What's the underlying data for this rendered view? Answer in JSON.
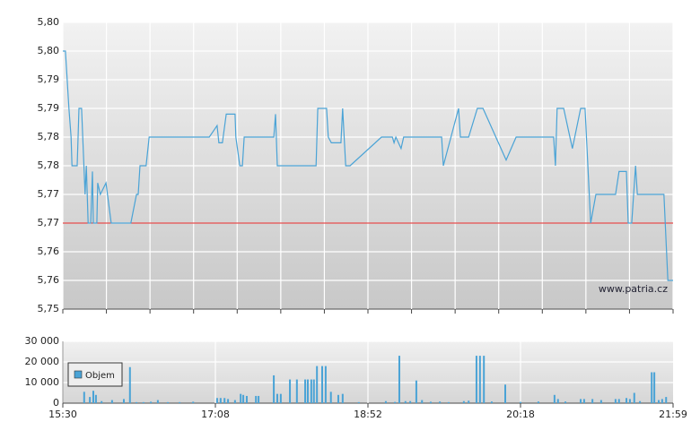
{
  "chart_data": [
    {
      "type": "line",
      "color": "#4aa3d6",
      "reference_line": 5.765,
      "reference_color": "#e02020",
      "annotation": "www.patria.cz",
      "xlim": [
        0,
        14
      ],
      "xgrid": [
        0,
        1,
        2,
        3,
        4,
        5,
        6,
        7,
        8,
        9,
        10,
        11,
        12,
        13,
        14
      ],
      "ylim": [
        5.75,
        5.8
      ],
      "yticks": [
        {
          "value": 5.75,
          "label": "5,75"
        },
        {
          "value": 5.755,
          "label": "5,76"
        },
        {
          "value": 5.76,
          "label": "5,76"
        },
        {
          "value": 5.765,
          "label": "5,77"
        },
        {
          "value": 5.77,
          "label": "5,77"
        },
        {
          "value": 5.775,
          "label": "5,78"
        },
        {
          "value": 5.78,
          "label": "5,78"
        },
        {
          "value": 5.785,
          "label": "5,79"
        },
        {
          "value": 5.79,
          "label": "5,79"
        },
        {
          "value": 5.795,
          "label": "5,80"
        },
        {
          "value": 5.8,
          "label": "5,80"
        }
      ],
      "grid": true,
      "x": [
        0,
        0.06,
        0.14,
        0.19,
        0.21,
        0.33,
        0.37,
        0.43,
        0.51,
        0.54,
        0.58,
        0.64,
        0.68,
        0.7,
        0.78,
        0.8,
        0.86,
        0.99,
        1.11,
        1.56,
        1.69,
        1.73,
        1.77,
        1.91,
        1.98,
        3.36,
        3.54,
        3.58,
        3.66,
        3.75,
        3.95,
        3.97,
        4.06,
        4.12,
        4.16,
        4.84,
        4.88,
        4.92,
        5.81,
        5.85,
        6.05,
        6.09,
        6.16,
        6.38,
        6.42,
        6.49,
        6.59,
        7.31,
        7.56,
        7.6,
        7.64,
        7.76,
        7.82,
        8.17,
        8.21,
        8.3,
        8.69,
        8.73,
        9.08,
        9.12,
        9.31,
        9.51,
        9.64,
        10.17,
        10.4,
        11.26,
        11.3,
        11.34,
        11.49,
        11.69,
        11.88,
        11.98,
        12.11,
        12.23,
        12.68,
        12.76,
        12.93,
        12.97,
        13.05,
        13.14,
        13.18,
        13.79,
        13.88,
        14
      ],
      "values": [
        5.795,
        5.795,
        5.785,
        5.78,
        5.775,
        5.775,
        5.785,
        5.785,
        5.77,
        5.775,
        5.765,
        5.765,
        5.774,
        5.765,
        5.765,
        5.772,
        5.77,
        5.772,
        5.765,
        5.765,
        5.77,
        5.77,
        5.775,
        5.775,
        5.78,
        5.78,
        5.782,
        5.779,
        5.779,
        5.784,
        5.784,
        5.78,
        5.775,
        5.775,
        5.78,
        5.78,
        5.784,
        5.775,
        5.775,
        5.785,
        5.785,
        5.78,
        5.779,
        5.779,
        5.785,
        5.775,
        5.775,
        5.78,
        5.78,
        5.779,
        5.78,
        5.778,
        5.78,
        5.78,
        5.78,
        5.78,
        5.78,
        5.775,
        5.785,
        5.78,
        5.78,
        5.785,
        5.785,
        5.776,
        5.78,
        5.78,
        5.775,
        5.785,
        5.785,
        5.778,
        5.785,
        5.785,
        5.765,
        5.77,
        5.77,
        5.774,
        5.774,
        5.765,
        5.765,
        5.775,
        5.77,
        5.77,
        5.755,
        5.755
      ]
    },
    {
      "type": "bar",
      "xlim": [
        0,
        14
      ],
      "xticks": [
        {
          "value": 0,
          "label": "15:30"
        },
        {
          "value": 3.5,
          "label": "17:08"
        },
        {
          "value": 7,
          "label": "18:52"
        },
        {
          "value": 10.5,
          "label": "20:18"
        },
        {
          "value": 14,
          "label": "21:59"
        }
      ],
      "ylim": [
        0,
        30000
      ],
      "yticks": [
        0,
        {
          "value": 10000,
          "label": "10 000"
        },
        {
          "value": 20000,
          "label": "20 000"
        },
        {
          "value": 30000,
          "label": "30 000"
        }
      ],
      "grid": true,
      "legend": "upper-left",
      "x": [
        0.49,
        0.62,
        0.7,
        0.76,
        0.89,
        1.13,
        1.4,
        1.54,
        1.69,
        1.85,
        2.02,
        2.18,
        2.41,
        2.68,
        2.99,
        3.54,
        3.62,
        3.71,
        3.79,
        3.95,
        4.08,
        4.14,
        4.22,
        4.43,
        4.49,
        4.84,
        4.92,
        5.0,
        5.21,
        5.37,
        5.56,
        5.62,
        5.7,
        5.76,
        5.83,
        5.95,
        6.03,
        6.15,
        6.32,
        6.42,
        6.79,
        7.41,
        7.62,
        7.72,
        7.86,
        7.97,
        8.11,
        8.24,
        8.44,
        8.65,
        8.85,
        9.2,
        9.31,
        9.49,
        9.57,
        9.66,
        9.84,
        10.15,
        10.5,
        10.91,
        11.28,
        11.36,
        11.53,
        11.88,
        11.96,
        12.15,
        12.35,
        12.68,
        12.76,
        12.93,
        13.01,
        13.11,
        13.24,
        13.51,
        13.57,
        13.67,
        13.75,
        13.84
      ],
      "series": [
        {
          "name": "Objem",
          "color": "#4aa3d6",
          "values": [
            5500,
            3000,
            6000,
            4000,
            1000,
            1500,
            2000,
            17500,
            500,
            500,
            700,
            1500,
            500,
            500,
            700,
            2500,
            2500,
            2500,
            2000,
            1500,
            4500,
            4000,
            3500,
            3500,
            3500,
            13500,
            4500,
            4500,
            11500,
            11500,
            11500,
            11500,
            11500,
            11500,
            18000,
            18000,
            18000,
            5500,
            4000,
            4500,
            500,
            1000,
            600,
            23000,
            1000,
            1000,
            11000,
            1500,
            700,
            800,
            500,
            1000,
            1200,
            23000,
            23000,
            23000,
            800,
            9000,
            600,
            800,
            4000,
            2000,
            800,
            2000,
            2000,
            2000,
            1500,
            2000,
            2000,
            2500,
            2000,
            5000,
            1000,
            15000,
            15000,
            1500,
            2000,
            3000
          ]
        }
      ]
    }
  ]
}
